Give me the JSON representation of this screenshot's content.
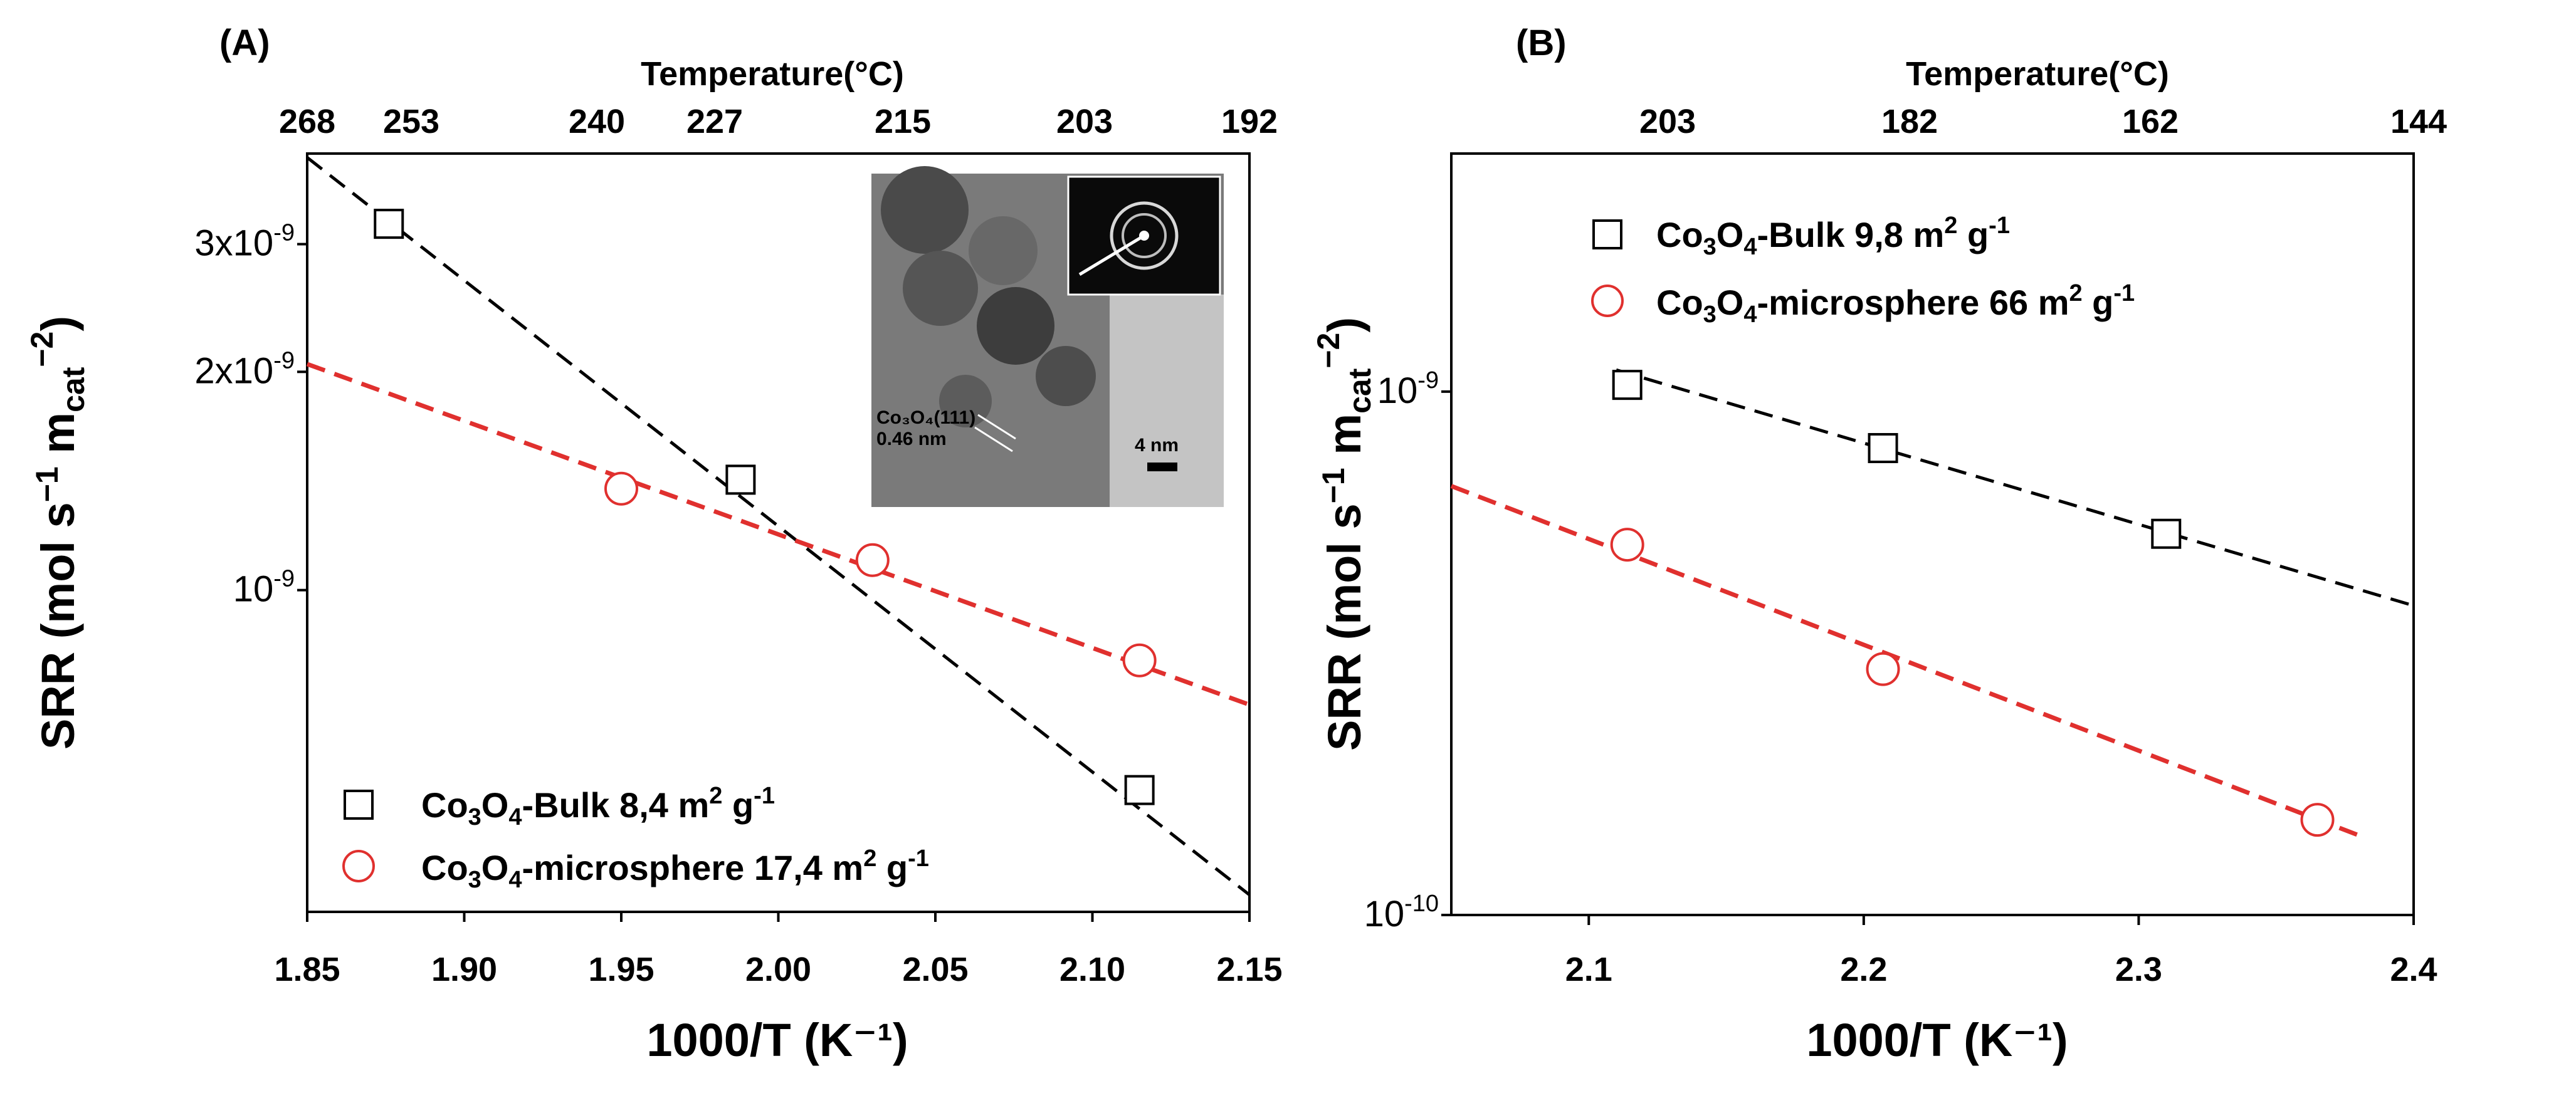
{
  "chart_data": [
    {
      "panel": "(A)",
      "type": "scatter",
      "top_axis_title": "Temperature(°C)",
      "top_ticks": [
        "268",
        "253",
        "240",
        "227",
        "215",
        "203",
        "192"
      ],
      "xlabel": "1000/T (K⁻¹)",
      "ylabel_parts": [
        "SRR (mol s",
        "−1",
        " m",
        "cat",
        "−2",
        ")"
      ],
      "xlim": [
        1.85,
        2.15
      ],
      "x_ticks": [
        1.85,
        1.9,
        1.95,
        2.0,
        2.05,
        2.1,
        2.15
      ],
      "x_tick_labels": [
        "1.85",
        "1.90",
        "1.95",
        "2.00",
        "2.05",
        "2.10",
        "2.15"
      ],
      "yscale": "log",
      "ylim": [
        3.6e-10,
        4e-09
      ],
      "y_ticks": [
        {
          "value": 3e-09,
          "mantissa": "3x10",
          "exp": "-9"
        },
        {
          "value": 2e-09,
          "mantissa": "2x10",
          "exp": "-9"
        },
        {
          "value": 1e-09,
          "mantissa": "10",
          "exp": "-9"
        }
      ],
      "series": [
        {
          "name_parts": [
            "Co",
            "3",
            "O",
            "4",
            "-Bulk 8,4 m",
            "2",
            " g",
            "-1"
          ],
          "marker": "square",
          "color": "#000000",
          "points": [
            [
              1.876,
              3.2e-09
            ],
            [
              1.988,
              1.42e-09
            ],
            [
              2.115,
              5.3e-10
            ]
          ],
          "fit": [
            [
              1.85,
              3.95e-09
            ],
            [
              2.15,
              3.8e-10
            ]
          ]
        },
        {
          "name_parts": [
            "Co",
            "3",
            "O",
            "4",
            "-microsphere 17,4 m",
            "2",
            " g",
            "-1"
          ],
          "marker": "circle",
          "color": "#e0302e",
          "points": [
            [
              1.95,
              1.38e-09
            ],
            [
              2.03,
              1.1e-09
            ],
            [
              2.115,
              8e-10
            ]
          ],
          "fit": [
            [
              1.85,
              2.05e-09
            ],
            [
              2.15,
              6.95e-10
            ]
          ]
        }
      ],
      "legend": "lower-left",
      "inset": {
        "kind": "TEM image",
        "lattice_label": "Co₃O₄(111)",
        "spacing_label": "0.46 nm",
        "scale_bar_label": "4 nm"
      }
    },
    {
      "panel": "(B)",
      "type": "scatter",
      "top_axis_title": "Temperature(°C)",
      "top_ticks": [
        "203",
        "182",
        "162",
        "144"
      ],
      "xlabel": "1000/T (K⁻¹)",
      "ylabel_parts": [
        "SRR (mol s",
        "−1",
        " m",
        "cat",
        "−2",
        ")"
      ],
      "xlim": [
        2.05,
        2.4
      ],
      "x_ticks": [
        2.1,
        2.2,
        2.3,
        2.4
      ],
      "x_tick_labels": [
        "2.1",
        "2.2",
        "2.3",
        "2.4"
      ],
      "yscale": "log",
      "ylim": [
        1e-10,
        2.85e-09
      ],
      "y_ticks": [
        {
          "value": 1e-09,
          "mantissa": "10",
          "exp": "-9"
        },
        {
          "value": 1e-10,
          "mantissa": "10",
          "exp": "-10"
        }
      ],
      "series": [
        {
          "name_parts": [
            "Co",
            "3",
            "O",
            "4",
            "-Bulk 9,8 m",
            "2",
            " g",
            "-1"
          ],
          "marker": "square",
          "color": "#000000",
          "points": [
            [
              2.114,
              1.03e-09
            ],
            [
              2.207,
              7.8e-10
            ],
            [
              2.31,
              5.35e-10
            ]
          ],
          "fit": [
            [
              2.11,
              1.1e-09
            ],
            [
              2.4,
              3.9e-10
            ]
          ]
        },
        {
          "name_parts": [
            "Co",
            "3",
            "O",
            "4",
            "-microsphere 66 m",
            "2",
            " g",
            "-1"
          ],
          "marker": "circle",
          "color": "#e0302e",
          "points": [
            [
              2.114,
              5.1e-10
            ],
            [
              2.207,
              2.95e-10
            ],
            [
              2.365,
              1.52e-10
            ]
          ],
          "fit": [
            [
              2.05,
              6.6e-10
            ],
            [
              2.38,
              1.42e-10
            ]
          ]
        }
      ],
      "legend": "top-left"
    }
  ]
}
